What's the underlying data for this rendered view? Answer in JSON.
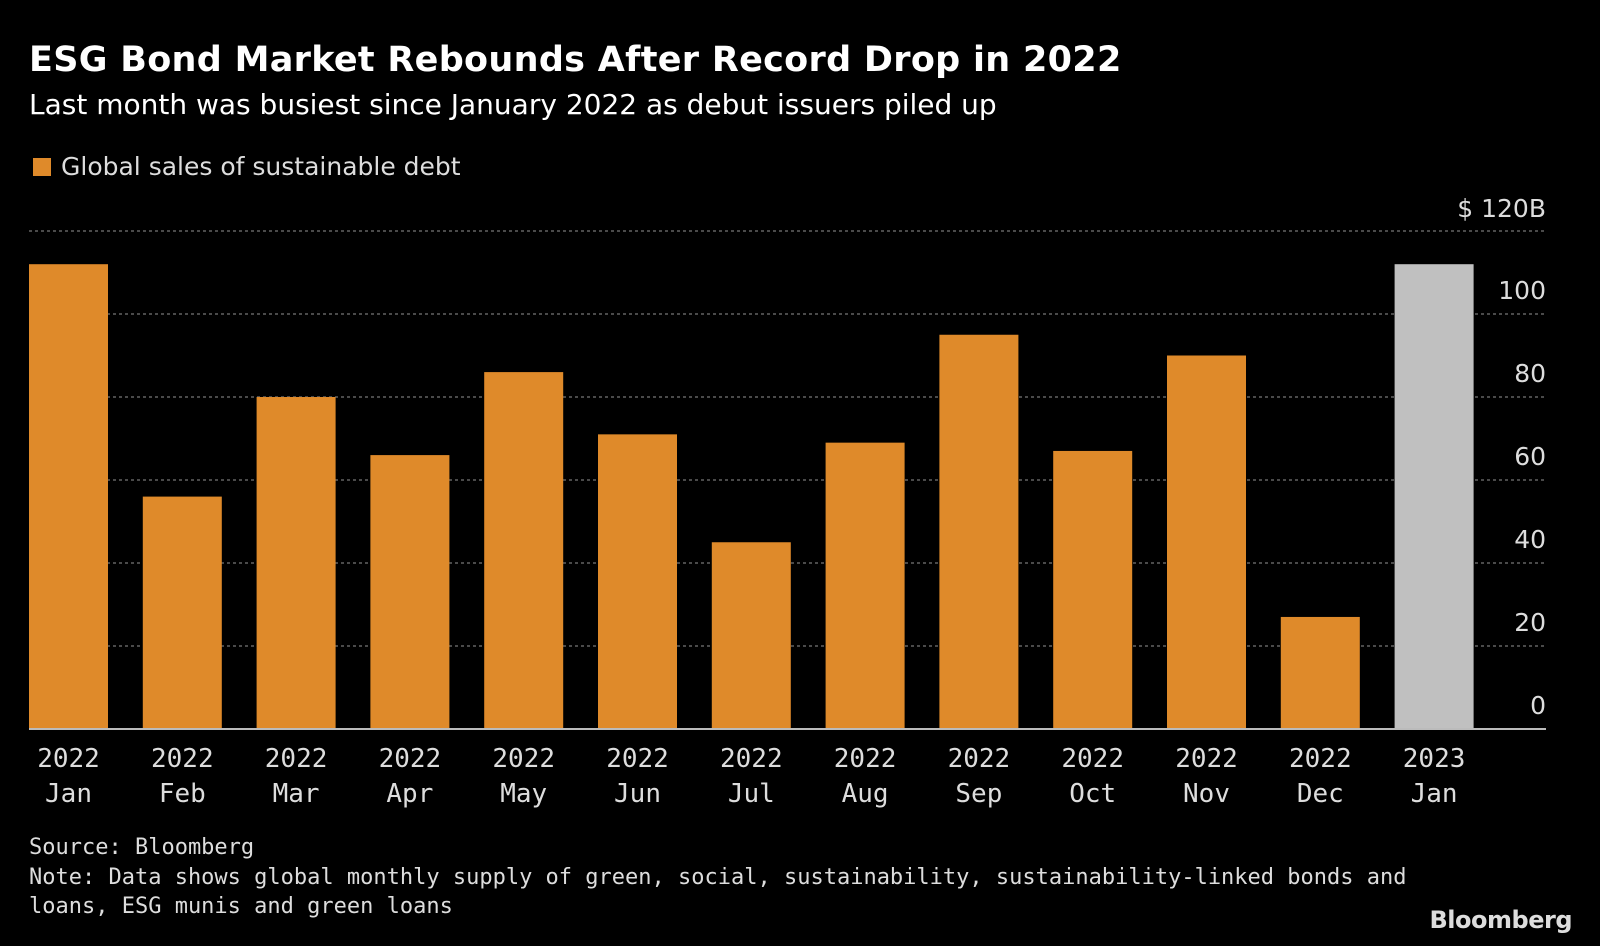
{
  "chart_data": {
    "type": "bar",
    "title": "ESG Bond Market Rebounds After Record Drop in 2022",
    "subtitle": "Last month was busiest since January 2022 as debut issuers piled up",
    "legend": [
      "Global sales of sustainable debt"
    ],
    "categories": [
      [
        "2022",
        "Jan"
      ],
      [
        "2022",
        "Feb"
      ],
      [
        "2022",
        "Mar"
      ],
      [
        "2022",
        "Apr"
      ],
      [
        "2022",
        "May"
      ],
      [
        "2022",
        "Jun"
      ],
      [
        "2022",
        "Jul"
      ],
      [
        "2022",
        "Aug"
      ],
      [
        "2022",
        "Sep"
      ],
      [
        "2022",
        "Oct"
      ],
      [
        "2022",
        "Nov"
      ],
      [
        "2022",
        "Dec"
      ],
      [
        "2023",
        "Jan"
      ]
    ],
    "series": [
      {
        "name": "Global sales of sustainable debt",
        "values": [
          112,
          56,
          80,
          66,
          86,
          71,
          45,
          69,
          95,
          67,
          90,
          27,
          112
        ]
      }
    ],
    "colors": {
      "bar": "#df8a2a",
      "highlight": "#c0c0c0",
      "grid": "#777777",
      "axis": "#bbbbbb"
    },
    "highlight_index": 12,
    "ylim": [
      0,
      120
    ],
    "yticks": [
      "0",
      "20",
      "40",
      "60",
      "80",
      "100",
      "$ 120B"
    ],
    "ytick_values": [
      0,
      20,
      40,
      60,
      80,
      100,
      120
    ],
    "grid": true,
    "yaxis_position": "right",
    "legend_position": "top-left"
  },
  "footer": {
    "source": "Source: Bloomberg",
    "note_line1": "Note: Data shows global monthly supply of green, social, sustainability, sustainability-linked bonds and",
    "note_line2": "loans, ESG munis and green loans",
    "logo": "Bloomberg"
  }
}
